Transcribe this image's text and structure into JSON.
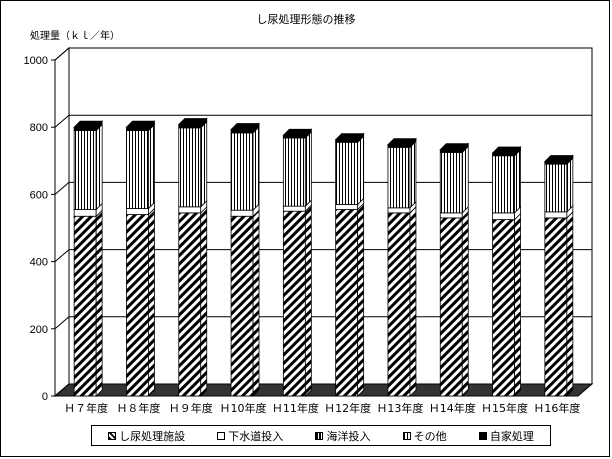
{
  "chart_data": {
    "type": "bar",
    "stacked": true,
    "three_d": true,
    "title": "し尿処理形態の推移",
    "ylabel": "処理量（ｋｌ／年）",
    "xlabel": "",
    "ylim": [
      0,
      1000
    ],
    "yticks": [
      0,
      200,
      400,
      600,
      800,
      1000
    ],
    "grid": true,
    "legend_position": "bottom",
    "categories": [
      "Ｈ７年度",
      "Ｈ８年度",
      "Ｈ９年度",
      "Ｈ10年度",
      "Ｈ11年度",
      "Ｈ12年度",
      "Ｈ13年度",
      "Ｈ14年度",
      "Ｈ15年度",
      "Ｈ16年度"
    ],
    "series": [
      {
        "name": "し尿処理施設",
        "pattern": "diagonal-hatch",
        "color": "#ffffff",
        "values": [
          535,
          540,
          545,
          535,
          550,
          555,
          545,
          530,
          525,
          530
        ]
      },
      {
        "name": "下水道投入",
        "pattern": "solid",
        "color": "#ffffff",
        "values": [
          20,
          18,
          18,
          18,
          15,
          15,
          15,
          15,
          20,
          18
        ]
      },
      {
        "name": "海洋投入",
        "pattern": "dark-stripe",
        "color": "#000000",
        "values": [
          0,
          0,
          0,
          0,
          0,
          0,
          0,
          0,
          0,
          0
        ]
      },
      {
        "name": "その他",
        "pattern": "vertical-lines",
        "color": "#ffffff",
        "values": [
          235,
          232,
          235,
          230,
          203,
          185,
          180,
          180,
          170,
          142
        ]
      },
      {
        "name": "自家処理",
        "pattern": "solid",
        "color": "#000000",
        "values": [
          10,
          10,
          10,
          10,
          8,
          8,
          8,
          8,
          8,
          8
        ]
      }
    ]
  }
}
